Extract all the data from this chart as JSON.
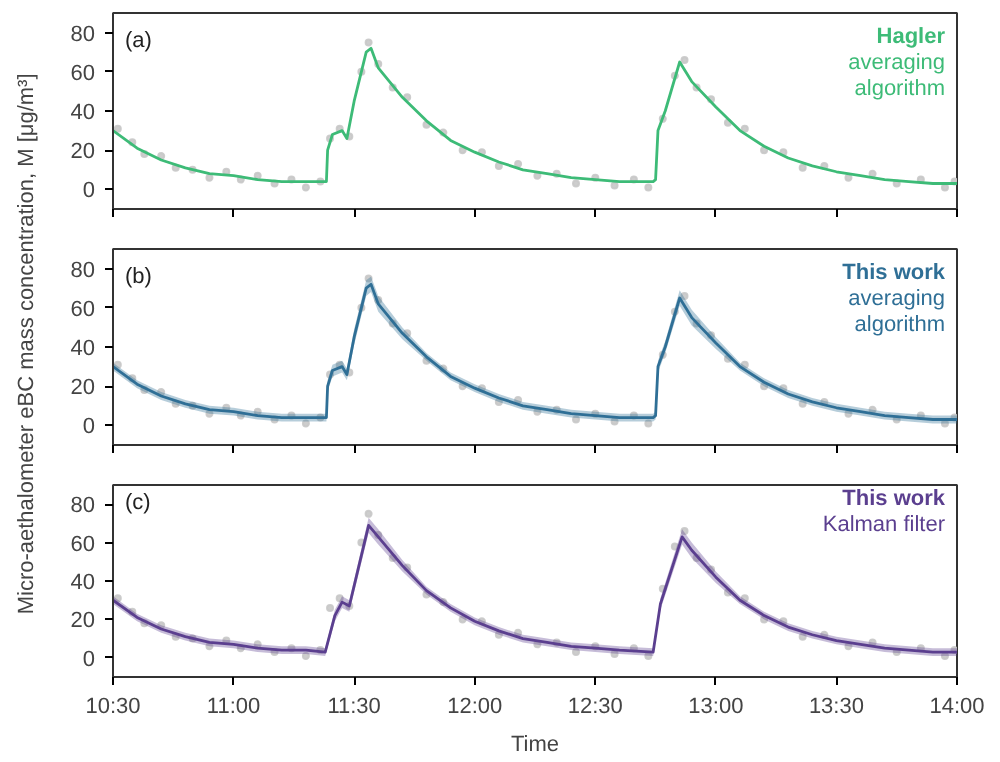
{
  "chart_data": [
    {
      "type": "line",
      "annotations": [
        "(a)",
        "Hagler",
        "averaging",
        "algorithm"
      ],
      "xlim": [
        10.5,
        14.0
      ],
      "xticks": [
        {
          "value": 10.5,
          "label": null
        },
        {
          "value": 11.0,
          "label": null
        },
        {
          "value": 11.5,
          "label": null
        },
        {
          "value": 12.0,
          "label": null
        },
        {
          "value": 12.5,
          "label": null
        },
        {
          "value": 13.0,
          "label": null
        },
        {
          "value": 13.5,
          "label": null
        },
        {
          "value": 14.0,
          "label": null
        }
      ],
      "ylim": [
        -10,
        90
      ],
      "yticks": [
        0,
        20,
        40,
        60,
        80
      ],
      "tick_labels": "y",
      "marker": "none",
      "series": [
        {
          "type": "scatter",
          "marker": "circle",
          "color": "#c8c8c8",
          "x": [
            10.52,
            10.58,
            10.63,
            10.7,
            10.76,
            10.83,
            10.9,
            10.97,
            11.03,
            11.1,
            11.17,
            11.24,
            11.3,
            11.36,
            11.4,
            11.44,
            11.48,
            11.53,
            11.56,
            11.6,
            11.66,
            11.72,
            11.8,
            11.87,
            11.95,
            12.03,
            12.1,
            12.18,
            12.26,
            12.34,
            12.42,
            12.5,
            12.58,
            12.66,
            12.72,
            12.78,
            12.83,
            12.87,
            12.92,
            12.98,
            13.05,
            13.12,
            13.2,
            13.28,
            13.36,
            13.45,
            13.55,
            13.65,
            13.75,
            13.85,
            13.95,
            13.99
          ],
          "values": [
            31,
            24,
            18,
            17,
            11,
            10,
            6,
            9,
            5,
            7,
            3,
            5,
            1,
            4,
            26,
            31,
            27,
            60,
            75,
            64,
            52,
            47,
            33,
            29,
            20,
            19,
            12,
            13,
            7,
            8,
            3,
            6,
            2,
            5,
            1,
            36,
            58,
            66,
            52,
            46,
            34,
            31,
            20,
            19,
            11,
            12,
            6,
            8,
            3,
            5,
            1,
            4
          ]
        },
        {
          "color": "#3dbb77",
          "x": [
            10.5,
            10.6,
            10.7,
            10.8,
            10.9,
            11.0,
            11.1,
            11.2,
            11.3,
            11.385,
            11.39,
            11.41,
            11.45,
            11.47,
            11.5,
            11.55,
            11.57,
            11.6,
            11.7,
            11.8,
            11.9,
            12.0,
            12.1,
            12.2,
            12.3,
            12.4,
            12.5,
            12.6,
            12.74,
            12.75,
            12.76,
            12.79,
            12.85,
            12.9,
            13.0,
            13.1,
            13.2,
            13.3,
            13.4,
            13.5,
            13.6,
            13.7,
            13.8,
            13.9,
            14.0
          ],
          "values": [
            30,
            21,
            15,
            11,
            8,
            7,
            5,
            4,
            4,
            4,
            20,
            28,
            30,
            26,
            45,
            70,
            72,
            62,
            47,
            35,
            25,
            19,
            14,
            10,
            8,
            6,
            5,
            4,
            4,
            5,
            30,
            40,
            65,
            55,
            42,
            30,
            22,
            16,
            12,
            9,
            7,
            5,
            4,
            3,
            3
          ]
        }
      ]
    },
    {
      "type": "line",
      "ylabel": "Micro-aethalometer eBC mass concentration, M [μg/m³]",
      "annotations": [
        "(b)",
        "This work",
        "averaging",
        "algorithm"
      ],
      "xlim": [
        10.5,
        14.0
      ],
      "xticks": [
        {
          "value": 10.5,
          "label": null
        },
        {
          "value": 11.0,
          "label": null
        },
        {
          "value": 11.5,
          "label": null
        },
        {
          "value": 12.0,
          "label": null
        },
        {
          "value": 12.5,
          "label": null
        },
        {
          "value": 13.0,
          "label": null
        },
        {
          "value": 13.5,
          "label": null
        },
        {
          "value": 14.0,
          "label": null
        }
      ],
      "ylim": [
        -10,
        90
      ],
      "yticks": [
        0,
        20,
        40,
        60,
        80
      ],
      "tick_labels": "y",
      "marker": "none",
      "series": [
        {
          "type": "scatter",
          "marker": "circle",
          "color": "#c8c8c8",
          "x": [
            10.52,
            10.58,
            10.63,
            10.7,
            10.76,
            10.83,
            10.9,
            10.97,
            11.03,
            11.1,
            11.17,
            11.24,
            11.3,
            11.36,
            11.4,
            11.44,
            11.48,
            11.53,
            11.56,
            11.6,
            11.66,
            11.72,
            11.8,
            11.87,
            11.95,
            12.03,
            12.1,
            12.18,
            12.26,
            12.34,
            12.42,
            12.5,
            12.58,
            12.66,
            12.72,
            12.78,
            12.83,
            12.87,
            12.92,
            12.98,
            13.05,
            13.12,
            13.2,
            13.28,
            13.36,
            13.45,
            13.55,
            13.65,
            13.75,
            13.85,
            13.95,
            13.99
          ],
          "values": [
            31,
            24,
            18,
            17,
            11,
            10,
            6,
            9,
            5,
            7,
            3,
            5,
            1,
            4,
            26,
            31,
            27,
            60,
            75,
            64,
            52,
            47,
            33,
            29,
            20,
            19,
            12,
            13,
            7,
            8,
            3,
            6,
            2,
            5,
            1,
            36,
            58,
            66,
            52,
            46,
            34,
            31,
            20,
            19,
            11,
            12,
            6,
            8,
            3,
            5,
            1,
            4
          ]
        },
        {
          "color": "#2f6f96",
          "x": [
            10.5,
            10.6,
            10.7,
            10.8,
            10.9,
            11.0,
            11.1,
            11.2,
            11.3,
            11.385,
            11.39,
            11.41,
            11.45,
            11.47,
            11.5,
            11.55,
            11.57,
            11.6,
            11.7,
            11.8,
            11.9,
            12.0,
            12.1,
            12.2,
            12.3,
            12.4,
            12.5,
            12.6,
            12.74,
            12.75,
            12.76,
            12.79,
            12.85,
            12.9,
            13.0,
            13.1,
            13.2,
            13.3,
            13.4,
            13.5,
            13.6,
            13.7,
            13.8,
            13.9,
            14.0
          ],
          "values": [
            30,
            21,
            15,
            11,
            8,
            7,
            5,
            4,
            4,
            4,
            20,
            28,
            30,
            26,
            45,
            70,
            72,
            62,
            47,
            35,
            25,
            19,
            14,
            10,
            8,
            6,
            5,
            4,
            4,
            5,
            30,
            40,
            65,
            55,
            42,
            30,
            22,
            16,
            12,
            9,
            7,
            5,
            4,
            3,
            3
          ],
          "lower": [
            28,
            19,
            13,
            9,
            6,
            5,
            3,
            2,
            2,
            2,
            17,
            25,
            27,
            23,
            41,
            66,
            68,
            58,
            44,
            33,
            23,
            17,
            12,
            8,
            6,
            4,
            3,
            2,
            2,
            3,
            27,
            37,
            61,
            51,
            39,
            28,
            20,
            14,
            10,
            7,
            5,
            3,
            2,
            1,
            1
          ],
          "upper": [
            32,
            23,
            17,
            13,
            10,
            9,
            7,
            6,
            6,
            6,
            23,
            31,
            33,
            29,
            49,
            74,
            76,
            66,
            50,
            37,
            27,
            21,
            16,
            12,
            10,
            8,
            7,
            6,
            6,
            7,
            33,
            43,
            69,
            59,
            45,
            32,
            24,
            18,
            14,
            11,
            9,
            7,
            6,
            5,
            5
          ]
        }
      ]
    },
    {
      "type": "line",
      "xlabel": "Time",
      "annotations": [
        "(c)",
        "This work",
        "Kalman filter"
      ],
      "xlim": [
        10.5,
        14.0
      ],
      "xticks": [
        {
          "value": 10.5,
          "label": "10:30"
        },
        {
          "value": 11.0,
          "label": "11:00"
        },
        {
          "value": 11.5,
          "label": "11:30"
        },
        {
          "value": 12.0,
          "label": "12:00"
        },
        {
          "value": 12.5,
          "label": "12:30"
        },
        {
          "value": 13.0,
          "label": "13:00"
        },
        {
          "value": 13.5,
          "label": "13:30"
        },
        {
          "value": 14.0,
          "label": "14:00"
        }
      ],
      "ylim": [
        -10,
        90
      ],
      "yticks": [
        0,
        20,
        40,
        60,
        80
      ],
      "marker": "none",
      "series": [
        {
          "type": "scatter",
          "marker": "circle",
          "color": "#c8c8c8",
          "x": [
            10.52,
            10.58,
            10.63,
            10.7,
            10.76,
            10.83,
            10.9,
            10.97,
            11.03,
            11.1,
            11.17,
            11.24,
            11.3,
            11.36,
            11.4,
            11.44,
            11.48,
            11.53,
            11.56,
            11.6,
            11.66,
            11.72,
            11.8,
            11.87,
            11.95,
            12.03,
            12.1,
            12.18,
            12.26,
            12.34,
            12.42,
            12.5,
            12.58,
            12.66,
            12.72,
            12.78,
            12.83,
            12.87,
            12.92,
            12.98,
            13.05,
            13.12,
            13.2,
            13.28,
            13.36,
            13.45,
            13.55,
            13.65,
            13.75,
            13.85,
            13.95,
            13.99
          ],
          "values": [
            31,
            24,
            18,
            17,
            11,
            10,
            6,
            9,
            5,
            7,
            3,
            5,
            1,
            4,
            26,
            31,
            27,
            60,
            75,
            64,
            52,
            47,
            33,
            29,
            20,
            19,
            12,
            13,
            7,
            8,
            3,
            6,
            2,
            5,
            1,
            36,
            58,
            66,
            52,
            46,
            34,
            31,
            20,
            19,
            11,
            12,
            6,
            8,
            3,
            5,
            1,
            4
          ]
        },
        {
          "color": "#5b3f8f",
          "x": [
            10.5,
            10.6,
            10.7,
            10.8,
            10.9,
            11.0,
            11.1,
            11.2,
            11.3,
            11.38,
            11.42,
            11.45,
            11.48,
            11.56,
            11.6,
            11.7,
            11.8,
            11.9,
            12.0,
            12.1,
            12.2,
            12.3,
            12.4,
            12.5,
            12.6,
            12.74,
            12.77,
            12.86,
            12.9,
            13.0,
            13.1,
            13.2,
            13.3,
            13.4,
            13.5,
            13.6,
            13.7,
            13.8,
            13.9,
            14.0
          ],
          "values": [
            30,
            21,
            15,
            11,
            8,
            7,
            5,
            4,
            4,
            3,
            22,
            29,
            27,
            69,
            63,
            48,
            35,
            26,
            19,
            14,
            10,
            8,
            6,
            5,
            4,
            3,
            28,
            63,
            56,
            42,
            30,
            22,
            16,
            12,
            9,
            7,
            5,
            4,
            3,
            3
          ],
          "lower": [
            28,
            19,
            13,
            9,
            6,
            5,
            3,
            2,
            2,
            1,
            19,
            26,
            24,
            65,
            59,
            45,
            33,
            24,
            17,
            12,
            8,
            6,
            4,
            3,
            2,
            1,
            25,
            59,
            52,
            39,
            28,
            20,
            14,
            10,
            7,
            5,
            3,
            2,
            1,
            1
          ],
          "upper": [
            32,
            23,
            17,
            13,
            10,
            9,
            7,
            6,
            6,
            5,
            25,
            32,
            30,
            73,
            67,
            51,
            37,
            28,
            21,
            16,
            12,
            10,
            8,
            7,
            6,
            5,
            31,
            67,
            60,
            45,
            32,
            24,
            18,
            14,
            11,
            9,
            7,
            6,
            5,
            5
          ]
        }
      ]
    }
  ]
}
